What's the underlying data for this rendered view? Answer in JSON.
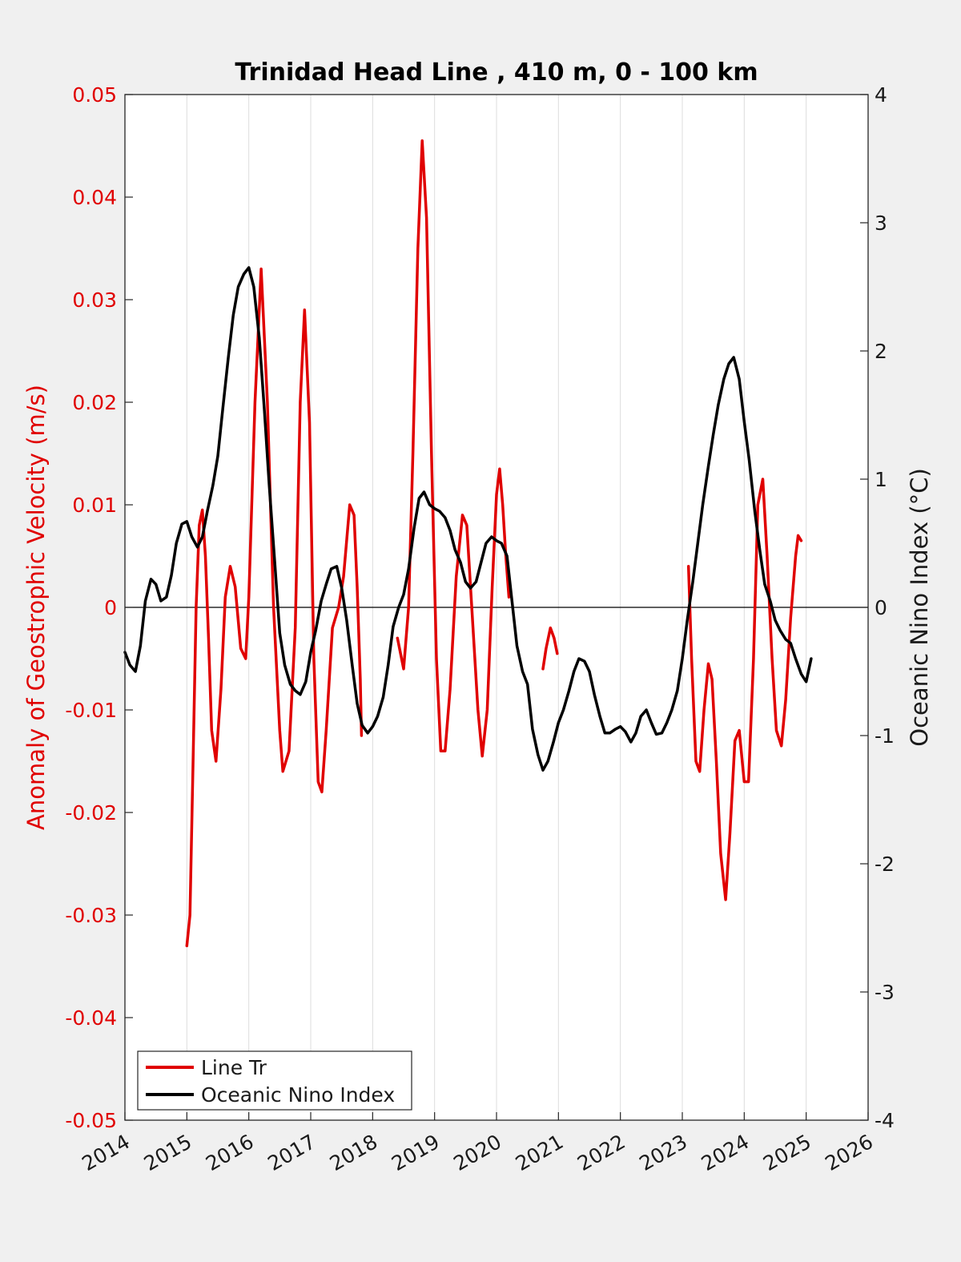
{
  "chart_data": {
    "type": "line",
    "title": "Trinidad Head Line , 410 m, 0 - 100 km",
    "ylabel_left": "Anomaly of Geostrophic Velocity (m/s)",
    "ylabel_right": "Oceanic Nino Index (°C)",
    "xlim": [
      2014,
      2026
    ],
    "ylim_left": [
      -0.05,
      0.05
    ],
    "ylim_right": [
      -4,
      4
    ],
    "x_ticks": [
      "2014",
      "2015",
      "2016",
      "2017",
      "2018",
      "2019",
      "2020",
      "2021",
      "2022",
      "2023",
      "2024",
      "2025",
      "2026"
    ],
    "y_ticks_left": [
      "0.05",
      "0.04",
      "0.03",
      "0.02",
      "0.01",
      "0",
      "-0.01",
      "-0.02",
      "-0.03",
      "-0.04",
      "-0.05"
    ],
    "y_ticks_right": [
      "4",
      "3",
      "2",
      "1",
      "0",
      "-1",
      "-2",
      "-3",
      "-4"
    ],
    "grid": "vertical",
    "legend_position": "bottom-left",
    "colors": {
      "line_tr": "#e00000",
      "oni": "#000000"
    },
    "series": [
      {
        "name": "Line Tr",
        "axis": "left",
        "segments": [
          [
            [
              2015.0,
              -0.033
            ],
            [
              2015.05,
              -0.03
            ],
            [
              2015.1,
              -0.015
            ],
            [
              2015.15,
              0.0
            ],
            [
              2015.2,
              0.008
            ],
            [
              2015.25,
              0.0095
            ],
            [
              2015.3,
              0.005
            ],
            [
              2015.35,
              -0.003
            ],
            [
              2015.4,
              -0.012
            ],
            [
              2015.47,
              -0.015
            ],
            [
              2015.55,
              -0.008
            ],
            [
              2015.62,
              0.001
            ],
            [
              2015.7,
              0.004
            ],
            [
              2015.78,
              0.002
            ],
            [
              2015.87,
              -0.004
            ],
            [
              2015.95,
              -0.005
            ],
            [
              2016.0,
              0.001
            ],
            [
              2016.1,
              0.02
            ],
            [
              2016.2,
              0.033
            ],
            [
              2016.3,
              0.02
            ],
            [
              2016.4,
              0.0
            ],
            [
              2016.5,
              -0.012
            ],
            [
              2016.55,
              -0.016
            ],
            [
              2016.65,
              -0.014
            ],
            [
              2016.75,
              -0.002
            ],
            [
              2016.83,
              0.02
            ],
            [
              2016.9,
              0.029
            ],
            [
              2016.98,
              0.018
            ],
            [
              2017.05,
              -0.005
            ],
            [
              2017.12,
              -0.017
            ],
            [
              2017.18,
              -0.018
            ],
            [
              2017.25,
              -0.012
            ],
            [
              2017.35,
              -0.002
            ],
            [
              2017.45,
              0.0
            ],
            [
              2017.53,
              0.003
            ],
            [
              2017.63,
              0.01
            ],
            [
              2017.7,
              0.009
            ],
            [
              2017.75,
              0.002
            ],
            [
              2017.8,
              -0.007
            ],
            [
              2017.82,
              -0.0125
            ]
          ],
          [
            [
              2018.4,
              -0.003
            ],
            [
              2018.5,
              -0.006
            ],
            [
              2018.58,
              0.0
            ],
            [
              2018.65,
              0.015
            ],
            [
              2018.73,
              0.035
            ],
            [
              2018.8,
              0.0455
            ],
            [
              2018.87,
              0.038
            ],
            [
              2018.95,
              0.015
            ],
            [
              2019.03,
              -0.005
            ],
            [
              2019.1,
              -0.014
            ],
            [
              2019.17,
              -0.014
            ],
            [
              2019.25,
              -0.008
            ],
            [
              2019.35,
              0.003
            ],
            [
              2019.45,
              0.009
            ],
            [
              2019.52,
              0.008
            ],
            [
              2019.6,
              0.0
            ],
            [
              2019.7,
              -0.01
            ],
            [
              2019.77,
              -0.0145
            ],
            [
              2019.85,
              -0.01
            ],
            [
              2019.93,
              0.002
            ],
            [
              2020.0,
              0.011
            ],
            [
              2020.05,
              0.0135
            ],
            [
              2020.1,
              0.01
            ],
            [
              2020.15,
              0.005
            ],
            [
              2020.2,
              0.001
            ]
          ],
          [
            [
              2020.75,
              -0.006
            ],
            [
              2020.8,
              -0.004
            ],
            [
              2020.87,
              -0.002
            ],
            [
              2020.93,
              -0.003
            ],
            [
              2020.98,
              -0.0045
            ]
          ],
          [
            [
              2023.1,
              0.004
            ],
            [
              2023.15,
              -0.005
            ],
            [
              2023.22,
              -0.015
            ],
            [
              2023.28,
              -0.016
            ],
            [
              2023.35,
              -0.01
            ],
            [
              2023.42,
              -0.0055
            ],
            [
              2023.48,
              -0.007
            ],
            [
              2023.55,
              -0.015
            ],
            [
              2023.62,
              -0.024
            ],
            [
              2023.7,
              -0.0285
            ],
            [
              2023.77,
              -0.022
            ],
            [
              2023.85,
              -0.013
            ],
            [
              2023.92,
              -0.012
            ],
            [
              2024.0,
              -0.017
            ],
            [
              2024.07,
              -0.017
            ],
            [
              2024.15,
              -0.005
            ],
            [
              2024.22,
              0.01
            ],
            [
              2024.3,
              0.0125
            ],
            [
              2024.37,
              0.005
            ],
            [
              2024.45,
              -0.005
            ],
            [
              2024.52,
              -0.012
            ],
            [
              2024.6,
              -0.0135
            ],
            [
              2024.67,
              -0.009
            ],
            [
              2024.75,
              -0.001
            ],
            [
              2024.83,
              0.005
            ],
            [
              2024.87,
              0.007
            ],
            [
              2024.92,
              0.0065
            ]
          ]
        ]
      },
      {
        "name": "Oceanic Nino Index",
        "axis": "right",
        "segments": [
          [
            [
              2014.0,
              -0.35
            ],
            [
              2014.08,
              -0.45
            ],
            [
              2014.17,
              -0.5
            ],
            [
              2014.25,
              -0.3
            ],
            [
              2014.33,
              0.05
            ],
            [
              2014.42,
              0.22
            ],
            [
              2014.5,
              0.18
            ],
            [
              2014.58,
              0.05
            ],
            [
              2014.67,
              0.08
            ],
            [
              2014.75,
              0.25
            ],
            [
              2014.83,
              0.5
            ],
            [
              2014.92,
              0.65
            ],
            [
              2015.0,
              0.67
            ],
            [
              2015.08,
              0.55
            ],
            [
              2015.17,
              0.47
            ],
            [
              2015.25,
              0.55
            ],
            [
              2015.33,
              0.75
            ],
            [
              2015.42,
              0.95
            ],
            [
              2015.5,
              1.18
            ],
            [
              2015.58,
              1.55
            ],
            [
              2015.67,
              1.95
            ],
            [
              2015.75,
              2.28
            ],
            [
              2015.83,
              2.5
            ],
            [
              2015.92,
              2.6
            ],
            [
              2016.0,
              2.65
            ],
            [
              2016.08,
              2.5
            ],
            [
              2016.17,
              2.1
            ],
            [
              2016.25,
              1.55
            ],
            [
              2016.33,
              0.95
            ],
            [
              2016.42,
              0.35
            ],
            [
              2016.5,
              -0.2
            ],
            [
              2016.58,
              -0.45
            ],
            [
              2016.67,
              -0.6
            ],
            [
              2016.75,
              -0.65
            ],
            [
              2016.83,
              -0.68
            ],
            [
              2016.92,
              -0.58
            ],
            [
              2017.0,
              -0.35
            ],
            [
              2017.08,
              -0.18
            ],
            [
              2017.17,
              0.05
            ],
            [
              2017.25,
              0.18
            ],
            [
              2017.33,
              0.3
            ],
            [
              2017.42,
              0.32
            ],
            [
              2017.5,
              0.15
            ],
            [
              2017.58,
              -0.1
            ],
            [
              2017.67,
              -0.45
            ],
            [
              2017.75,
              -0.75
            ],
            [
              2017.83,
              -0.92
            ],
            [
              2017.92,
              -0.98
            ],
            [
              2018.0,
              -0.93
            ],
            [
              2018.08,
              -0.85
            ],
            [
              2018.17,
              -0.7
            ],
            [
              2018.25,
              -0.45
            ],
            [
              2018.33,
              -0.15
            ],
            [
              2018.42,
              0.0
            ],
            [
              2018.5,
              0.1
            ],
            [
              2018.58,
              0.3
            ],
            [
              2018.67,
              0.62
            ],
            [
              2018.75,
              0.85
            ],
            [
              2018.83,
              0.9
            ],
            [
              2018.92,
              0.8
            ],
            [
              2019.0,
              0.77
            ],
            [
              2019.08,
              0.75
            ],
            [
              2019.17,
              0.7
            ],
            [
              2019.25,
              0.6
            ],
            [
              2019.33,
              0.45
            ],
            [
              2019.42,
              0.35
            ],
            [
              2019.5,
              0.2
            ],
            [
              2019.58,
              0.15
            ],
            [
              2019.67,
              0.2
            ],
            [
              2019.75,
              0.35
            ],
            [
              2019.83,
              0.5
            ],
            [
              2019.92,
              0.55
            ],
            [
              2020.0,
              0.52
            ],
            [
              2020.08,
              0.5
            ],
            [
              2020.17,
              0.4
            ],
            [
              2020.25,
              0.05
            ],
            [
              2020.33,
              -0.3
            ],
            [
              2020.42,
              -0.5
            ],
            [
              2020.5,
              -0.6
            ],
            [
              2020.58,
              -0.95
            ],
            [
              2020.67,
              -1.15
            ],
            [
              2020.75,
              -1.27
            ],
            [
              2020.83,
              -1.2
            ],
            [
              2020.92,
              -1.05
            ],
            [
              2021.0,
              -0.9
            ],
            [
              2021.08,
              -0.8
            ],
            [
              2021.17,
              -0.65
            ],
            [
              2021.25,
              -0.5
            ],
            [
              2021.33,
              -0.4
            ],
            [
              2021.42,
              -0.42
            ],
            [
              2021.5,
              -0.5
            ],
            [
              2021.58,
              -0.68
            ],
            [
              2021.67,
              -0.85
            ],
            [
              2021.75,
              -0.98
            ],
            [
              2021.83,
              -0.98
            ],
            [
              2021.92,
              -0.95
            ],
            [
              2022.0,
              -0.93
            ],
            [
              2022.08,
              -0.97
            ],
            [
              2022.17,
              -1.05
            ],
            [
              2022.25,
              -0.98
            ],
            [
              2022.33,
              -0.85
            ],
            [
              2022.42,
              -0.8
            ],
            [
              2022.5,
              -0.9
            ],
            [
              2022.58,
              -0.99
            ],
            [
              2022.67,
              -0.98
            ],
            [
              2022.75,
              -0.9
            ],
            [
              2022.83,
              -0.8
            ],
            [
              2022.92,
              -0.65
            ],
            [
              2023.0,
              -0.4
            ],
            [
              2023.08,
              -0.1
            ],
            [
              2023.17,
              0.2
            ],
            [
              2023.25,
              0.5
            ],
            [
              2023.33,
              0.8
            ],
            [
              2023.42,
              1.1
            ],
            [
              2023.5,
              1.35
            ],
            [
              2023.58,
              1.58
            ],
            [
              2023.67,
              1.78
            ],
            [
              2023.75,
              1.9
            ],
            [
              2023.83,
              1.95
            ],
            [
              2023.92,
              1.78
            ],
            [
              2024.0,
              1.45
            ],
            [
              2024.08,
              1.15
            ],
            [
              2024.17,
              0.75
            ],
            [
              2024.25,
              0.45
            ],
            [
              2024.33,
              0.18
            ],
            [
              2024.42,
              0.05
            ],
            [
              2024.5,
              -0.1
            ],
            [
              2024.58,
              -0.18
            ],
            [
              2024.67,
              -0.25
            ],
            [
              2024.75,
              -0.28
            ],
            [
              2024.83,
              -0.4
            ],
            [
              2024.92,
              -0.52
            ],
            [
              2025.0,
              -0.58
            ],
            [
              2025.08,
              -0.4
            ]
          ]
        ]
      }
    ]
  }
}
